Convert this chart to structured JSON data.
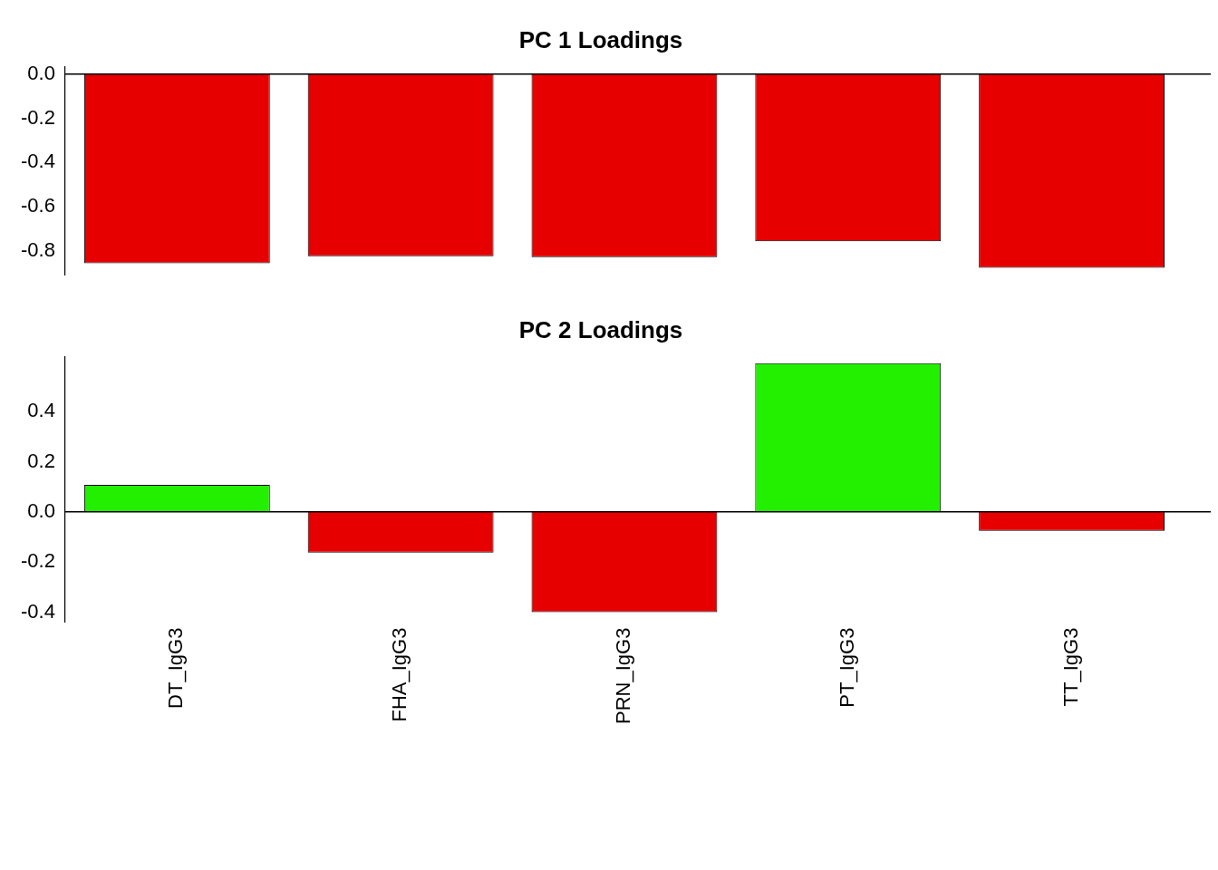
{
  "chart_data": [
    {
      "type": "bar",
      "title": "PC 1 Loadings",
      "categories": [
        null,
        null,
        null,
        null,
        null
      ],
      "values": [
        -0.856,
        -0.824,
        -0.828,
        -0.756,
        -0.876
      ],
      "colors": [
        "#e60000",
        "#e60000",
        "#e60000",
        "#e60000",
        "#e60000"
      ],
      "ylim": [
        -0.91,
        0.035
      ],
      "yticks": [
        {
          "value": 0,
          "label": "0.0"
        },
        {
          "value": -0.2,
          "label": "-0.2"
        },
        {
          "value": -0.4,
          "label": "-0.4"
        },
        {
          "value": -0.6,
          "label": "-0.6"
        },
        {
          "value": -0.8,
          "label": "-0.8"
        }
      ],
      "ref_lines": [
        {
          "axis": "y",
          "value": 0,
          "color": "#000000"
        }
      ],
      "tick_labels": "y",
      "grid": false,
      "legend": false
    },
    {
      "type": "bar",
      "title": "PC 2 Loadings",
      "categories": [
        "DT_IgG3",
        "FHA_IgG3",
        "PRN_IgG3",
        "PT_IgG3",
        "TT_IgG3"
      ],
      "values": [
        0.108,
        -0.162,
        -0.4,
        0.593,
        -0.076
      ],
      "colors": [
        "#22f000",
        "#e60000",
        "#e60000",
        "#22f000",
        "#e60000"
      ],
      "ylim": [
        -0.44,
        0.62
      ],
      "yticks": [
        {
          "value": -0.4,
          "label": "-0.4"
        },
        {
          "value": -0.2,
          "label": "-0.2"
        },
        {
          "value": 0,
          "label": "0.0"
        },
        {
          "value": 0.2,
          "label": "0.2"
        },
        {
          "value": 0.4,
          "label": "0.4"
        }
      ],
      "ref_lines": [
        {
          "axis": "y",
          "value": 0,
          "color": "#000000"
        }
      ],
      "grid": false,
      "legend": false
    }
  ]
}
